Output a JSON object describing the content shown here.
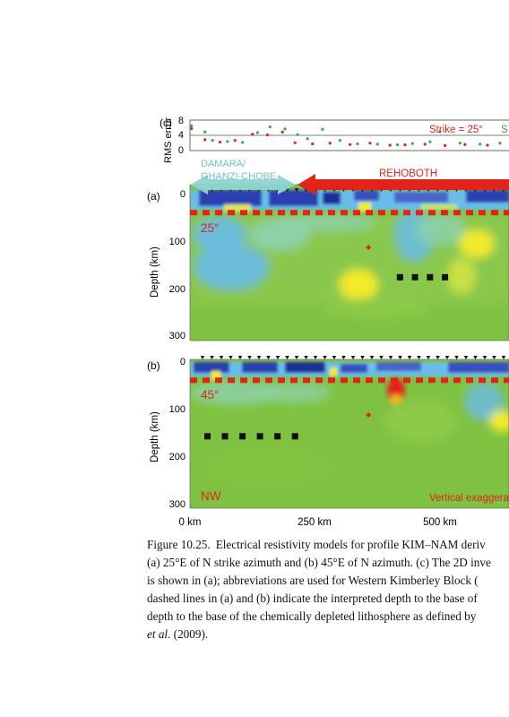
{
  "figure": {
    "panel_c": {
      "label": "(c)",
      "ylabel": "RMS error",
      "yticks": [
        "8",
        "4",
        "0"
      ],
      "ylim": [
        0,
        9
      ],
      "legend": [
        {
          "text": "Strike = 25°",
          "color": "#d7261e"
        },
        {
          "text": "S",
          "color": "#3aa84a"
        }
      ],
      "series": [
        {
          "name": "Strike = 25°",
          "color": "#d7261e",
          "points": [
            [
              3,
              6.5
            ],
            [
              30,
              3.2
            ],
            [
              60,
              2.5
            ],
            [
              90,
              3.0
            ],
            [
              125,
              4.8
            ],
            [
              155,
              4.6
            ],
            [
              185,
              5.5
            ],
            [
              210,
              2.3
            ],
            [
              245,
              2.0
            ],
            [
              280,
              2.2
            ],
            [
              320,
              1.8
            ],
            [
              360,
              2.2
            ],
            [
              400,
              1.6
            ],
            [
              430,
              1.7
            ],
            [
              470,
              1.9
            ],
            [
              510,
              1.5
            ],
            [
              550,
              1.8
            ],
            [
              595,
              1.6
            ],
            [
              640,
              1.5
            ],
            [
              680,
              1.7
            ]
          ]
        },
        {
          "name": "S",
          "color": "#3aa84a",
          "points": [
            [
              3,
              7.3
            ],
            [
              30,
              5.5
            ],
            [
              45,
              3.0
            ],
            [
              75,
              2.7
            ],
            [
              105,
              2.4
            ],
            [
              135,
              5.3
            ],
            [
              160,
              7.0
            ],
            [
              190,
              6.4
            ],
            [
              215,
              4.7
            ],
            [
              235,
              3.5
            ],
            [
              265,
              6.3
            ],
            [
              300,
              3.0
            ],
            [
              335,
              2.0
            ],
            [
              375,
              1.9
            ],
            [
              415,
              1.7
            ],
            [
              445,
              2.1
            ],
            [
              480,
              2.6
            ],
            [
              500,
              5.6
            ],
            [
              540,
              2.2
            ],
            [
              580,
              1.9
            ],
            [
              620,
              2.2
            ],
            [
              660,
              2.0
            ]
          ]
        }
      ]
    },
    "panel_a": {
      "label": "(a)",
      "ylabel": "Depth (km)",
      "yticks": [
        "0",
        "100",
        "200",
        "300"
      ],
      "strike_label": "25°",
      "region_left": "DAMARA/\nGHANZI-CHOBE",
      "region_right": "REHOBOTH",
      "lab_depth_km": 42,
      "diamond": {
        "x_km": 357,
        "depth_km": 115
      },
      "squares": {
        "x_km": [
          420,
          450,
          480,
          510
        ],
        "depth_km": 178
      }
    },
    "panel_b": {
      "label": "(b)",
      "ylabel": "Depth (km)",
      "yticks": [
        "0",
        "100",
        "200",
        "300"
      ],
      "strike_label": "45°",
      "nw_label": "NW",
      "note": "Vertical exaggeration",
      "lab_depth_km": 42,
      "diamond": {
        "x_km": 357,
        "depth_km": 115
      },
      "squares": {
        "x_km": [
          35,
          70,
          105,
          140,
          175,
          210
        ],
        "depth_km": 160
      }
    },
    "x_axis": {
      "ticks": [
        "0 km",
        "250 km",
        "500 km"
      ],
      "values_km": [
        0,
        250,
        500
      ]
    }
  },
  "caption": {
    "label": "Figure 10.25.",
    "lines": [
      "Electrical resistivity models for profile KIM–NAM deriv",
      "(a) 25°E of N strike azimuth and (b) 45°E of N azimuth. (c) The 2D inve",
      "is shown in (a); abbreviations are used for Western Kimberley Block (",
      "dashed lines in (a) and (b) indicate the interpreted depth to the base of",
      "depth to the base of the chemically depleted lithosphere as defined by"
    ],
    "last_line_author": "et al",
    "last_line_rest": ". (2009)."
  },
  "colors": {
    "background_green": "#7fc241",
    "conductive_blue": "#2a3fb0",
    "light_blue": "#69bde8",
    "resistive_yellow": "#f2ea2a",
    "marker_red": "#e2231a",
    "region_left_color": "#8fd3d0",
    "region_right_color": "#e2231a"
  }
}
